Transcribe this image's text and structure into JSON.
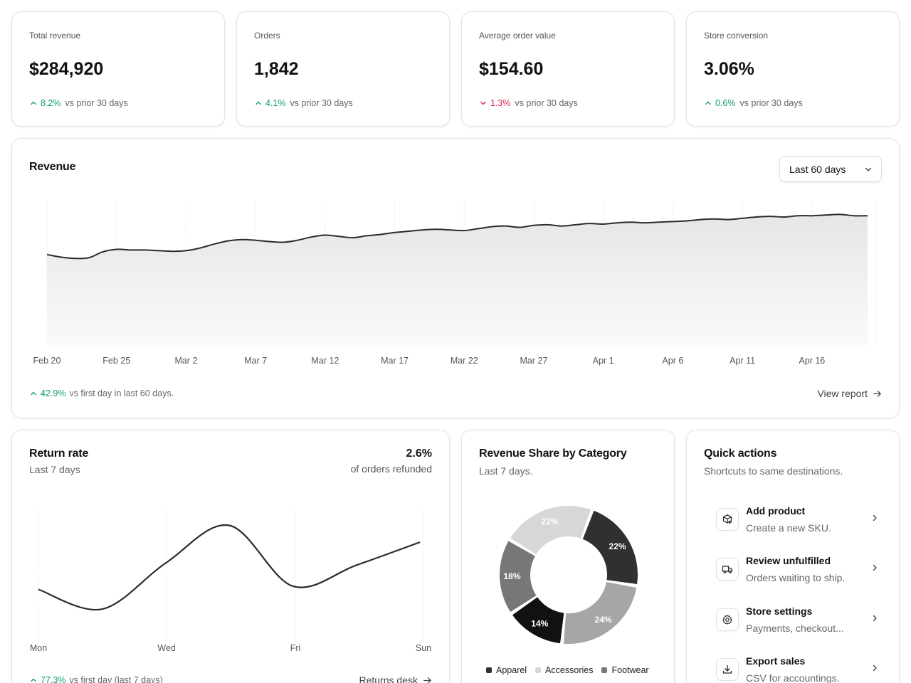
{
  "kpis": [
    {
      "label": "Total revenue",
      "value": "$284,920",
      "delta": "8.2%",
      "direction": "up",
      "comparison": "vs prior 30 days"
    },
    {
      "label": "Orders",
      "value": "1,842",
      "delta": "4.1%",
      "direction": "up",
      "comparison": "vs prior 30 days"
    },
    {
      "label": "Average order value",
      "value": "$154.60",
      "delta": "1.3%",
      "direction": "down",
      "comparison": "vs prior 30 days"
    },
    {
      "label": "Store conversion",
      "value": "3.06%",
      "delta": "0.6%",
      "direction": "up",
      "comparison": "vs prior 30 days"
    }
  ],
  "revenue": {
    "title": "Revenue",
    "range_select": "Last 60 days",
    "footer_delta": "42.9%",
    "footer_text": "vs first day in last 60 days.",
    "link": "View report"
  },
  "return_rate": {
    "title": "Return rate",
    "subtitle": "Last 7 days",
    "value": "2.6%",
    "value_caption": "of orders refunded",
    "footer_delta": "77.3%",
    "footer_text": "vs first day (last 7 days)",
    "link": "Returns desk"
  },
  "share": {
    "title": "Revenue Share by Category",
    "subtitle": "Last 7 days.",
    "legend": [
      "Apparel",
      "Accessories",
      "Footwear"
    ]
  },
  "actions": {
    "title": "Quick actions",
    "subtitle": "Shortcuts to same destinations.",
    "items": [
      {
        "title": "Add product",
        "desc": "Create a new SKU.",
        "icon": "package-plus-icon"
      },
      {
        "title": "Review unfulfilled",
        "desc": "Orders waiting to ship.",
        "icon": "truck-icon"
      },
      {
        "title": "Store settings",
        "desc": "Payments, checkout...",
        "icon": "gear-icon"
      },
      {
        "title": "Export sales",
        "desc": "CSV for accountings.",
        "icon": "download-icon"
      }
    ]
  },
  "colors": {
    "up": "#0f9d6b",
    "down": "#d6224a",
    "line": "#2b2b2b"
  },
  "chart_data": [
    {
      "type": "area",
      "title": "Revenue",
      "x_ticks": [
        "Feb 20",
        "Feb 25",
        "Mar 2",
        "Mar 7",
        "Mar 12",
        "Mar 17",
        "Mar 22",
        "Mar 27",
        "Apr 1",
        "Apr 6",
        "Apr 11",
        "Apr 16"
      ],
      "x": [
        "Feb 20",
        "Feb 21",
        "Feb 22",
        "Feb 23",
        "Feb 24",
        "Feb 25",
        "Feb 26",
        "Feb 27",
        "Feb 28",
        "Mar 1",
        "Mar 2",
        "Mar 3",
        "Mar 4",
        "Mar 5",
        "Mar 6",
        "Mar 7",
        "Mar 8",
        "Mar 9",
        "Mar 10",
        "Mar 11",
        "Mar 12",
        "Mar 13",
        "Mar 14",
        "Mar 15",
        "Mar 16",
        "Mar 17",
        "Mar 18",
        "Mar 19",
        "Mar 20",
        "Mar 21",
        "Mar 22",
        "Mar 23",
        "Mar 24",
        "Mar 25",
        "Mar 26",
        "Mar 27",
        "Mar 28",
        "Mar 29",
        "Mar 30",
        "Mar 31",
        "Apr 1",
        "Apr 2",
        "Apr 3",
        "Apr 4",
        "Apr 5",
        "Apr 6",
        "Apr 7",
        "Apr 8",
        "Apr 9",
        "Apr 10",
        "Apr 11",
        "Apr 12",
        "Apr 13",
        "Apr 14",
        "Apr 15",
        "Apr 16",
        "Apr 17",
        "Apr 18",
        "Apr 19",
        "Apr 20"
      ],
      "values": [
        7.0,
        6.8,
        6.7,
        6.75,
        7.2,
        7.4,
        7.35,
        7.35,
        7.3,
        7.25,
        7.3,
        7.5,
        7.8,
        8.05,
        8.15,
        8.1,
        8.0,
        7.95,
        8.1,
        8.35,
        8.5,
        8.4,
        8.3,
        8.45,
        8.55,
        8.7,
        8.8,
        8.9,
        8.95,
        8.9,
        8.85,
        9.0,
        9.15,
        9.2,
        9.1,
        9.25,
        9.3,
        9.2,
        9.3,
        9.4,
        9.35,
        9.45,
        9.5,
        9.45,
        9.5,
        9.55,
        9.6,
        9.7,
        9.75,
        9.7,
        9.8,
        9.9,
        9.95,
        9.9,
        10.0,
        10.0,
        10.05,
        10.1,
        10.0,
        10.0
      ],
      "ylim": [
        0,
        11
      ],
      "grid": "vertical"
    },
    {
      "type": "line",
      "title": "Return rate",
      "x": [
        "Mon",
        "Tue",
        "Wed",
        "Thu",
        "Fri",
        "Sat",
        "Sun"
      ],
      "x_ticks": [
        "Mon",
        "Wed",
        "Fri",
        "Sun"
      ],
      "values": [
        1.47,
        1.0,
        2.1,
        3.0,
        1.55,
        2.05,
        2.6
      ],
      "ylim": [
        0,
        3.4
      ],
      "grid": "vertical"
    },
    {
      "type": "pie",
      "title": "Revenue Share by Category",
      "slices": [
        {
          "label": "22%",
          "value": 22,
          "color": "#303030"
        },
        {
          "label": "24%",
          "value": 24,
          "color": "#a6a6a6"
        },
        {
          "label": "14%",
          "value": 14,
          "color": "#111111"
        },
        {
          "label": "18%",
          "value": 18,
          "color": "#777777"
        },
        {
          "label": "22%",
          "value": 22,
          "color": "#d7d7d7"
        }
      ],
      "legend": [
        "Apparel",
        "Accessories",
        "Footwear"
      ],
      "legend_colors": [
        "#303030",
        "#d7d7d7",
        "#777777"
      ]
    }
  ]
}
